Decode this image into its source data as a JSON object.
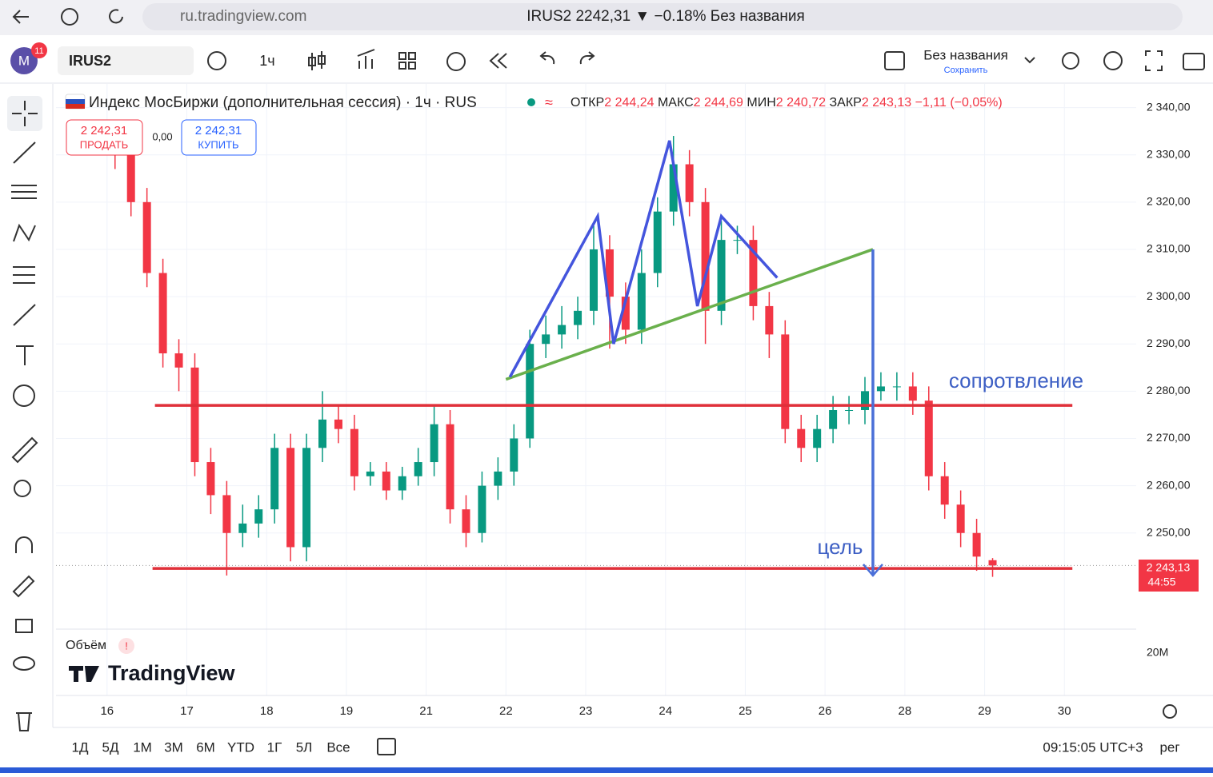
{
  "browser": {
    "url": "ru.tradingview.com",
    "tab_title": "IRUS2 2242,31 ▼ −0.18% Без названия"
  },
  "toolbar": {
    "avatar": "M",
    "badge": "11",
    "symbol": "IRUS2",
    "interval": "1ч",
    "layout_name": "Без названия",
    "layout_status": "Сохранить"
  },
  "legend": {
    "title": "Индекс МосБиржи (дополнительная сессия) · 1ч · RUS",
    "o_label": "ОТКР",
    "o": "2 244,24",
    "h_label": "МАКС",
    "h": "2 244,69",
    "l_label": "МИН",
    "l": "2 240,72",
    "c_label": "ЗАКР",
    "c": "2 243,13",
    "change": "−1,11 (−0,05%)"
  },
  "trade": {
    "sell_price": "2 242,31",
    "sell": "ПРОДАТЬ",
    "spread": "0,00",
    "buy_price": "2 242,31",
    "buy": "КУПИТЬ"
  },
  "annotations": {
    "resistance": "сопротвление",
    "target": "цель"
  },
  "volume": {
    "label": "Объём",
    "tick": "20M"
  },
  "logo": "TradingView",
  "price_label": {
    "price": "2 243,13",
    "timer": "44:55"
  },
  "ranges": [
    "1Д",
    "5Д",
    "1М",
    "3М",
    "6М",
    "YTD",
    "1Г",
    "5Л",
    "Все"
  ],
  "clock": "09:15:05 UTC+3",
  "session": "рег",
  "chart_data": {
    "type": "candlestick",
    "up_color": "#089981",
    "down_color": "#f23645",
    "x": [
      0.1,
      0.3,
      0.5,
      0.7,
      0.9,
      1.1,
      1.3,
      1.5,
      1.7,
      1.9,
      2.1,
      2.3,
      2.5,
      2.7,
      2.9,
      3.1,
      3.3,
      3.5,
      3.7,
      3.9,
      4.1,
      4.3,
      4.5,
      4.7,
      4.9,
      5.1,
      5.3,
      5.5,
      5.7,
      5.9,
      6.1,
      6.3,
      6.5,
      6.7,
      6.9,
      7.1,
      7.3,
      7.5,
      7.7,
      7.9,
      8.1,
      8.3,
      8.5,
      8.7,
      8.9,
      9.1,
      9.3,
      9.5,
      9.7,
      9.9,
      10.1,
      10.3,
      10.5,
      10.7,
      10.9,
      11.1
    ],
    "open": [
      2333,
      2330,
      2320,
      2305,
      2288,
      2285,
      2265,
      2258,
      2250,
      2252,
      2255,
      2268,
      2247,
      2268,
      2274,
      2272,
      2262,
      2263,
      2259,
      2262,
      2265,
      2273,
      2255,
      2250,
      2260,
      2263,
      2270,
      2290,
      2292,
      2294,
      2297,
      2310,
      2300,
      2293,
      2305,
      2318,
      2328,
      2320,
      2297,
      2312,
      2312,
      2298,
      2292,
      2272,
      2268,
      2272,
      2276,
      2276,
      2280,
      2281,
      2281,
      2278,
      2262,
      2256,
      2250,
      2244.24
    ],
    "high": [
      2336,
      2333,
      2323,
      2308,
      2291,
      2288,
      2268,
      2261,
      2256,
      2258,
      2271,
      2271,
      2271,
      2280,
      2277,
      2275,
      2265,
      2265,
      2264,
      2268,
      2277,
      2276,
      2258,
      2263,
      2266,
      2273,
      2293,
      2296,
      2298,
      2300,
      2315,
      2313,
      2303,
      2310,
      2321,
      2334,
      2331,
      2323,
      2316,
      2315,
      2315,
      2301,
      2295,
      2275,
      2275,
      2279,
      2279,
      2283,
      2284,
      2284,
      2284,
      2281,
      2265,
      2259,
      2253,
      2244.69
    ],
    "low": [
      2327,
      2317,
      2302,
      2285,
      2280,
      2262,
      2254,
      2241,
      2247,
      2249,
      2252,
      2244,
      2244,
      2265,
      2269,
      2259,
      2260,
      2257,
      2257,
      2260,
      2262,
      2252,
      2247,
      2248,
      2257,
      2260,
      2268,
      2287,
      2289,
      2291,
      2294,
      2289,
      2290,
      2290,
      2302,
      2315,
      2317,
      2290,
      2294,
      2309,
      2295,
      2287,
      2269,
      2265,
      2265,
      2269,
      2273,
      2273,
      2278,
      2278,
      2275,
      2259,
      2253,
      2247,
      2242,
      2240.72
    ],
    "close": [
      2330,
      2320,
      2305,
      2288,
      2285,
      2265,
      2258,
      2250,
      2252,
      2255,
      2268,
      2247,
      2268,
      2274,
      2272,
      2262,
      2263,
      2259,
      2262,
      2265,
      2273,
      2255,
      2250,
      2260,
      2263,
      2270,
      2290,
      2292,
      2294,
      2297,
      2310,
      2300,
      2293,
      2305,
      2318,
      2328,
      2320,
      2297,
      2312,
      2312,
      2298,
      2292,
      2272,
      2268,
      2272,
      2276,
      2276,
      2280,
      2281,
      2281,
      2278,
      2262,
      2256,
      2250,
      2245,
      2243.13
    ],
    "xlim": [
      -0.64,
      12.9
    ],
    "ylim": [
      2230,
      2345
    ],
    "yticks": [
      {
        "value": 2250,
        "label": "2 250,00"
      },
      {
        "value": 2260,
        "label": "2 260,00"
      },
      {
        "value": 2270,
        "label": "2 270,00"
      },
      {
        "value": 2280,
        "label": "2 280,00"
      },
      {
        "value": 2290,
        "label": "2 290,00"
      },
      {
        "value": 2300,
        "label": "2 300,00"
      },
      {
        "value": 2310,
        "label": "2 310,00"
      },
      {
        "value": 2320,
        "label": "2 320,00"
      },
      {
        "value": 2330,
        "label": "2 330,00"
      },
      {
        "value": 2340,
        "label": "2 340,00"
      }
    ],
    "xticks": [
      {
        "value": 0,
        "label": "16"
      },
      {
        "value": 1,
        "label": "17"
      },
      {
        "value": 2,
        "label": "18"
      },
      {
        "value": 3,
        "label": "19"
      },
      {
        "value": 4,
        "label": "21"
      },
      {
        "value": 5,
        "label": "22"
      },
      {
        "value": 6,
        "label": "23"
      },
      {
        "value": 7,
        "label": "24"
      },
      {
        "value": 8,
        "label": "25"
      },
      {
        "value": 9,
        "label": "26"
      },
      {
        "value": 10,
        "label": "28"
      },
      {
        "value": 11,
        "label": "29"
      },
      {
        "value": 12,
        "label": "30"
      }
    ],
    "grid": true,
    "drawings": [
      {
        "color": "#e0303a",
        "points": [
          [
            0.6,
            2277
          ],
          [
            12.1,
            2277
          ]
        ]
      },
      {
        "color": "#e0303a",
        "points": [
          [
            0.57,
            2242.5
          ],
          [
            12.1,
            2242.5
          ]
        ]
      },
      {
        "color": "#6ab04c",
        "points": [
          [
            5.0,
            2282.5
          ],
          [
            9.6,
            2310
          ]
        ]
      },
      {
        "color": "#4455dd",
        "points": [
          [
            5.05,
            2283
          ],
          [
            6.15,
            2317
          ],
          [
            6.35,
            2290
          ],
          [
            7.05,
            2333
          ],
          [
            7.4,
            2298
          ],
          [
            7.7,
            2317
          ],
          [
            8.4,
            2304
          ]
        ]
      },
      {
        "color": "#4a6fd8",
        "points": [
          [
            9.6,
            2310
          ],
          [
            9.6,
            2241
          ]
        ]
      }
    ]
  }
}
